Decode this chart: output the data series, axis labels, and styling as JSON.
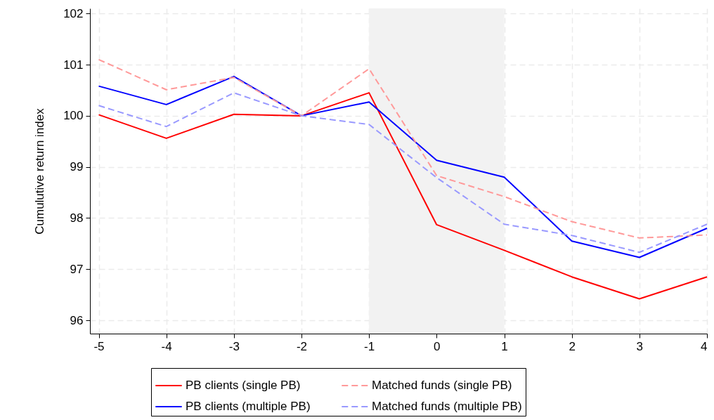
{
  "chart_data": {
    "type": "line",
    "ylabel": "Cumulutive return index",
    "x": [
      -5,
      -4,
      -3,
      -2,
      -1,
      0,
      1,
      2,
      3,
      4
    ],
    "series": [
      {
        "name": "PB clients (single PB)",
        "color": "#ff0000",
        "line_style": "solid",
        "values": [
          100.02,
          99.56,
          100.03,
          100.0,
          100.45,
          97.87,
          97.37,
          96.85,
          96.42,
          96.85
        ]
      },
      {
        "name": "PB clients (multiple PB)",
        "color": "#0000ff",
        "line_style": "solid",
        "values": [
          100.58,
          100.22,
          100.77,
          100.0,
          100.27,
          99.13,
          98.8,
          97.55,
          97.23,
          97.8
        ]
      },
      {
        "name": "Matched funds (single PB)",
        "color": "#ff9999",
        "line_style": "dashed",
        "values": [
          101.1,
          100.51,
          100.75,
          100.0,
          100.92,
          98.83,
          98.42,
          97.93,
          97.61,
          97.67
        ]
      },
      {
        "name": "Matched funds (multiple PB)",
        "color": "#9999ff",
        "line_style": "dashed",
        "values": [
          100.2,
          99.79,
          100.45,
          100.0,
          99.83,
          98.79,
          97.88,
          97.66,
          97.33,
          97.88
        ]
      }
    ],
    "xlim": [
      -5.13,
      4
    ],
    "ylim": [
      95.74,
      102.1
    ],
    "xticks": [
      -5,
      -4,
      -3,
      -2,
      -1,
      0,
      1,
      2,
      3,
      4
    ],
    "yticks": [
      96,
      97,
      98,
      99,
      100,
      101,
      102
    ],
    "bands": [
      {
        "axis": "x",
        "from": -1,
        "to": 1,
        "color": "#f2f2f2"
      }
    ],
    "grid": true,
    "legend": "bottom",
    "marker": "none"
  }
}
